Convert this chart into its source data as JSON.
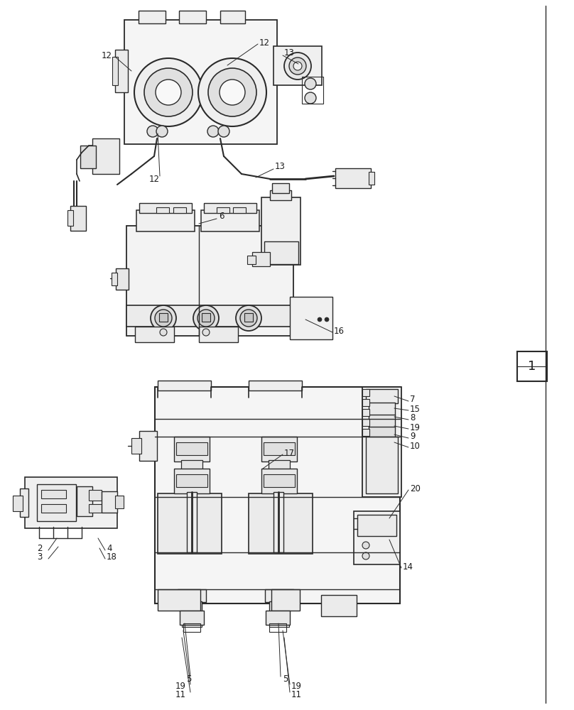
{
  "background_color": "#ffffff",
  "line_color": "#2a2a2a",
  "gray1": "#e8e8e8",
  "gray2": "#d8d8d8",
  "gray3": "#c8c8c8",
  "label_color": "#1a1a1a",
  "fig_width": 8.08,
  "fig_height": 10.0,
  "dpi": 100
}
